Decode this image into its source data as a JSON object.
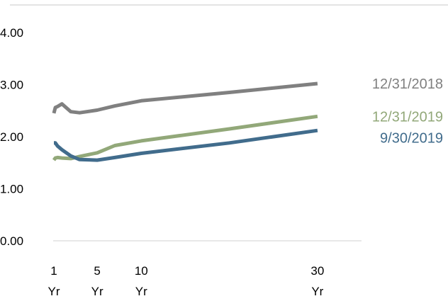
{
  "chart_data": {
    "type": "line",
    "title": "",
    "xlabel": "",
    "ylabel": "",
    "ylim": [
      0,
      4
    ],
    "yticks": [
      "0.00",
      "1.00",
      "2.00",
      "3.00",
      "4.00"
    ],
    "xlim": [
      0,
      35
    ],
    "xticks": [
      {
        "x": 0.08,
        "line1": "1",
        "line2": "Yr"
      },
      {
        "x": 5,
        "line1": "5",
        "line2": "Yr"
      },
      {
        "x": 10,
        "line1": "10",
        "line2": "Yr"
      },
      {
        "x": 30,
        "line1": "30",
        "line2": "Yr"
      }
    ],
    "grid": false,
    "legend": "right (labels at line ends)",
    "series": [
      {
        "name": "12/31/2018",
        "color": "#808080",
        "points": [
          [
            0.08,
            2.45
          ],
          [
            0.25,
            2.56
          ],
          [
            0.5,
            2.58
          ],
          [
            1,
            2.63
          ],
          [
            2,
            2.48
          ],
          [
            3,
            2.46
          ],
          [
            5,
            2.51
          ],
          [
            7,
            2.59
          ],
          [
            10,
            2.69
          ],
          [
            20,
            2.85
          ],
          [
            30,
            3.02
          ]
        ]
      },
      {
        "name": "12/31/2019",
        "color": "#92a879",
        "points": [
          [
            0.08,
            1.55
          ],
          [
            0.25,
            1.59
          ],
          [
            0.5,
            1.6
          ],
          [
            1,
            1.59
          ],
          [
            2,
            1.58
          ],
          [
            3,
            1.62
          ],
          [
            5,
            1.69
          ],
          [
            7,
            1.83
          ],
          [
            10,
            1.92
          ],
          [
            20,
            2.15
          ],
          [
            30,
            2.39
          ]
        ]
      },
      {
        "name": "9/30/2019",
        "color": "#416c8c",
        "points": [
          [
            0.08,
            1.88
          ],
          [
            0.25,
            1.88
          ],
          [
            0.5,
            1.82
          ],
          [
            1,
            1.75
          ],
          [
            2,
            1.63
          ],
          [
            3,
            1.56
          ],
          [
            5,
            1.55
          ],
          [
            7,
            1.6
          ],
          [
            10,
            1.68
          ],
          [
            20,
            1.88
          ],
          [
            30,
            2.12
          ]
        ]
      }
    ]
  }
}
